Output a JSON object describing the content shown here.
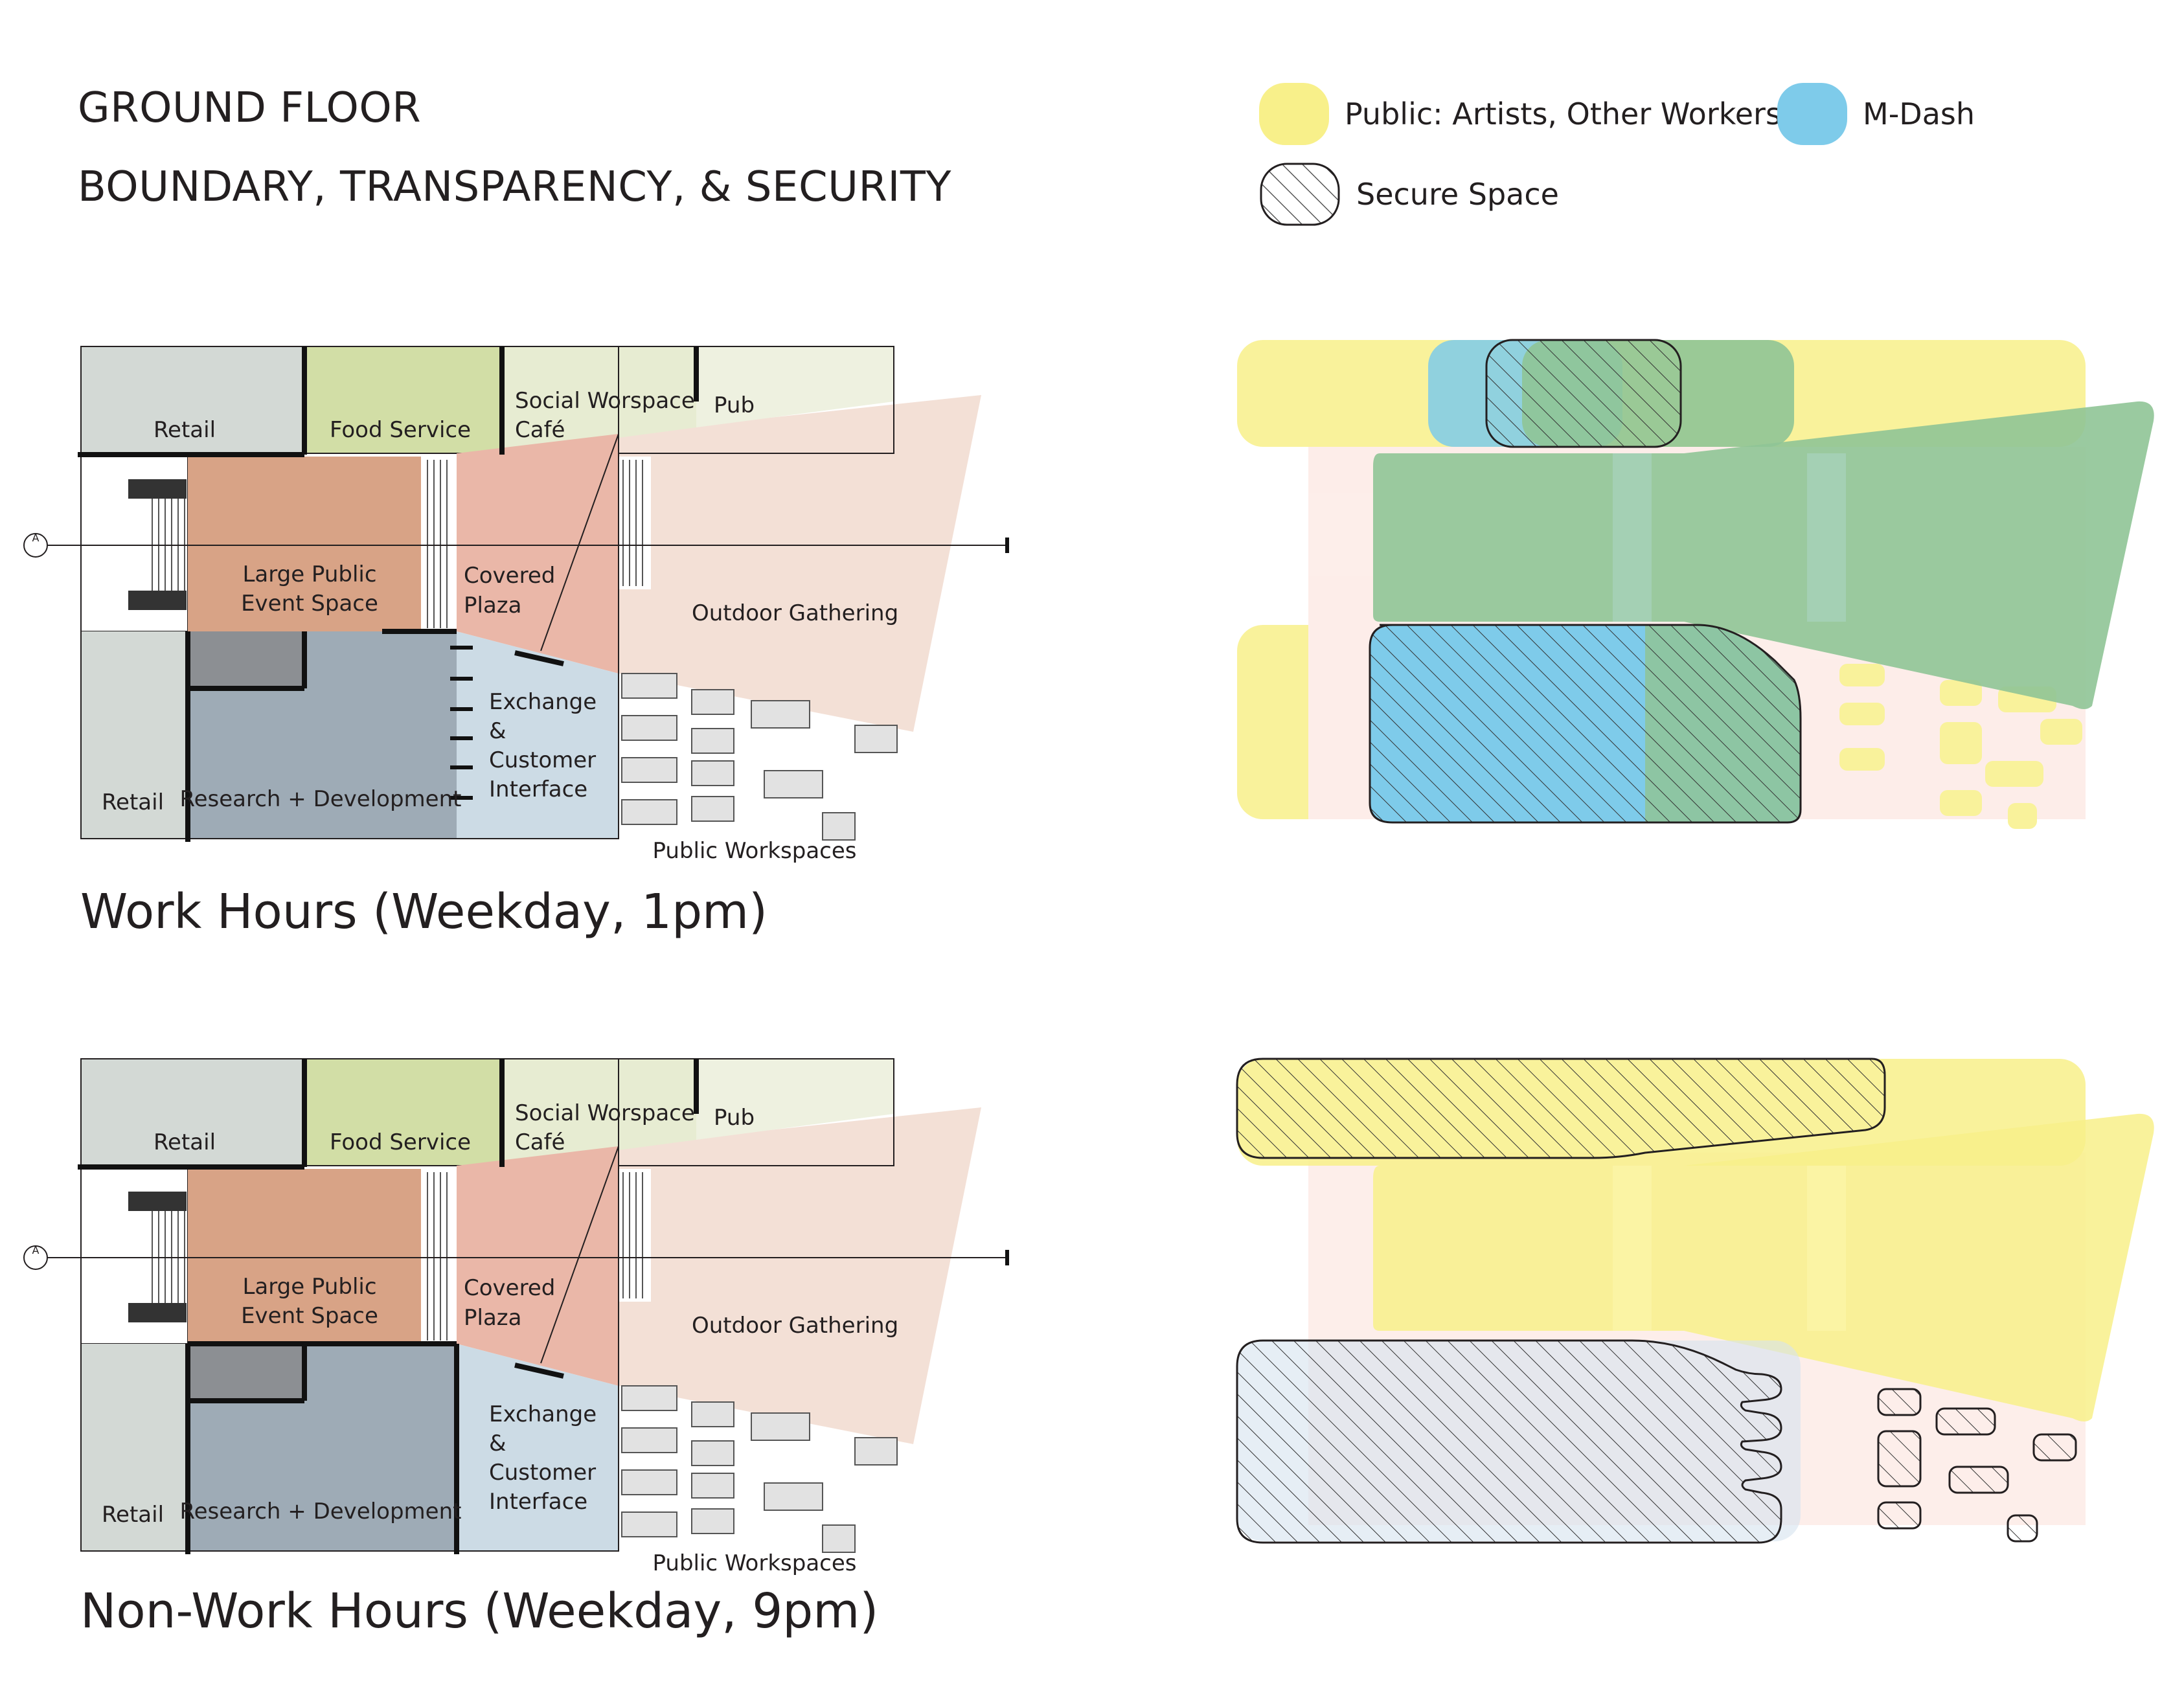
{
  "header": {
    "title": "GROUND FLOOR",
    "subtitle": "BOUNDARY, TRANSPARENCY, & SECURITY"
  },
  "legend": [
    {
      "label": "Public: Artists, Other Workers",
      "color": "#f8f08a"
    },
    {
      "label": "M-Dash",
      "color": "#7ecbea"
    },
    {
      "label": "Secure Space",
      "color": "hatched"
    }
  ],
  "plan": {
    "rooms": {
      "retail_top": "Retail",
      "food_service": "Food Service",
      "social_1": "Social Worspace",
      "social_2": "Café",
      "pub": "Pub",
      "event_1": "Large Public",
      "event_2": "Event Space",
      "plaza_1": "Covered",
      "plaza_2": "Plaza",
      "outdoor": "Outdoor Gathering",
      "exchange_1": "Exchange",
      "exchange_2": "&",
      "exchange_3": "Customer",
      "exchange_4": "Interface",
      "retail_bottom": "Retail",
      "research": "Research + Development",
      "public_workspaces": "Public Workspaces",
      "section_marker": "A"
    }
  },
  "captions": {
    "work_hours": "Work Hours (Weekday, 1pm)",
    "non_work_hours": "Non-Work Hours (Weekday, 9pm)"
  },
  "colors": {
    "retail": "#d3d9d5",
    "food": "#d2dea6",
    "social": "#e7ecd2",
    "pub": "#eef1e0",
    "event": "#d8a386",
    "plaza": "#eab7a8",
    "outdoor": "#f3e0d6",
    "research": "#9eabb6",
    "exchange": "#ccdbe5",
    "public": "#f8f08a",
    "mdash": "#7ecbea",
    "green": "#8fc496"
  }
}
